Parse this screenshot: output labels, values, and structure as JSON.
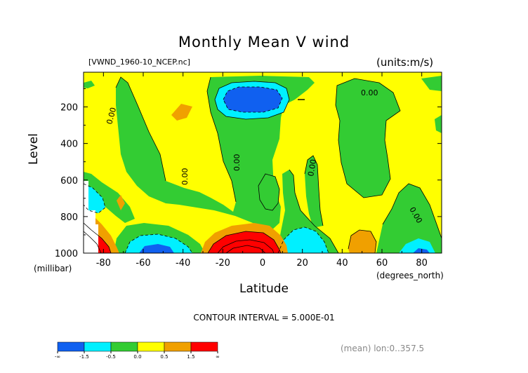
{
  "chart_data": {
    "type": "heatmap",
    "title": "Monthly Mean V wind",
    "subtitle_left": "[VWND_1960-10_NCEP.nc]",
    "subtitle_right": "(units:m/s)",
    "xlabel": "Latitude",
    "xunit": "(degrees_north)",
    "ylabel": "Level",
    "yunit": "(millibar)",
    "xlim": [
      -90,
      90
    ],
    "ylim": [
      1000,
      10
    ],
    "x_ticks": [
      -80,
      -60,
      -40,
      -20,
      0,
      20,
      40,
      60,
      80
    ],
    "y_ticks": [
      200,
      400,
      600,
      800,
      1000
    ],
    "contour_interval_text": "CONTOUR INTERVAL = 5.000E-01",
    "mean_text": "(mean) lon:0..357.5",
    "contour_labels": [
      "0.00",
      "0.00",
      "0.00",
      "0.00",
      "0.00",
      "0.00"
    ],
    "colorbar": {
      "levels": [
        "-∞",
        "-1.5",
        "-0.5",
        "0.0",
        "0.5",
        "1.5",
        "∞"
      ],
      "colors": [
        "#1060f0",
        "#00f0ff",
        "#33cc33",
        "#ffff00",
        "#f0a000",
        "#ff0000"
      ]
    },
    "regions": [
      {
        "name": "south-polar-positive",
        "sign": "positive",
        "lat": -86,
        "lev": 950
      },
      {
        "name": "south-negative-70",
        "sign": "negative",
        "lat": -70,
        "lev": 720
      },
      {
        "name": "south-negative-55",
        "sign": "negative",
        "lat": -55,
        "lev": 970
      },
      {
        "name": "upper-negative-jet",
        "sign": "negative",
        "lat": -10,
        "lev": 160
      },
      {
        "name": "lower-positive-cell",
        "sign": "positive",
        "lat": -10,
        "lev": 960
      },
      {
        "name": "lower-negative-20",
        "sign": "negative",
        "lat": 22,
        "lev": 940
      },
      {
        "name": "lower-positive-50",
        "sign": "positive",
        "lat": 50,
        "lev": 930
      },
      {
        "name": "lower-negative-80",
        "sign": "negative",
        "lat": 80,
        "lev": 980
      }
    ]
  }
}
